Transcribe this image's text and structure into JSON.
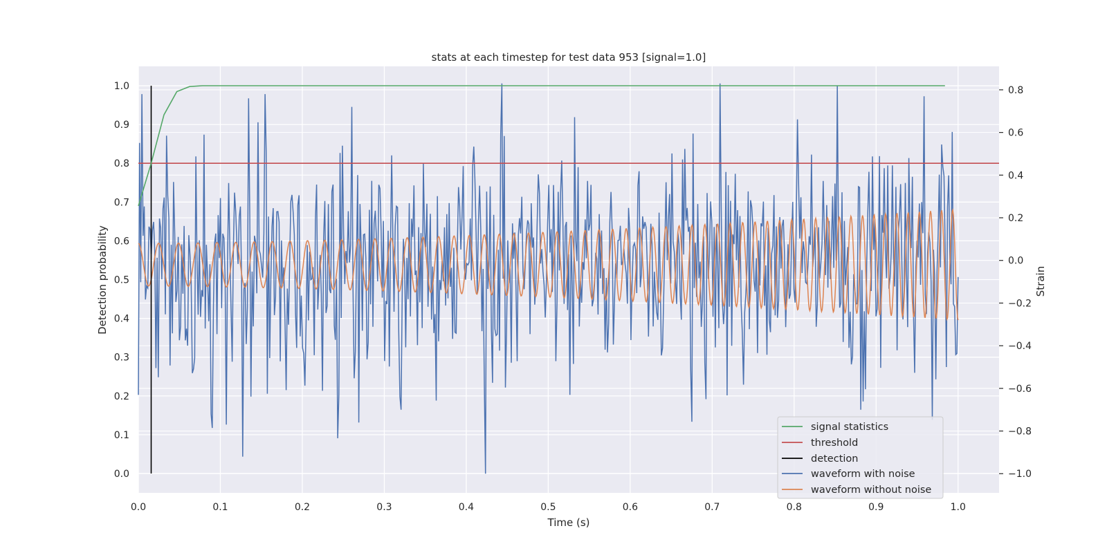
{
  "chart_data": {
    "type": "line",
    "title": "stats at each timestep for test data 953 [signal=1.0]",
    "xlabel": "Time (s)",
    "ylabel_left": "Detection probability",
    "ylabel_right": "Strain",
    "xlim": [
      0.0,
      1.05
    ],
    "ylim_left": [
      -0.05,
      1.05
    ],
    "ylim_right": [
      -1.09,
      0.91
    ],
    "x_ticks": [
      "0.0",
      "0.1",
      "0.2",
      "0.3",
      "0.4",
      "0.5",
      "0.6",
      "0.7",
      "0.8",
      "0.9",
      "1.0"
    ],
    "y_ticks_left": [
      "0.0",
      "0.1",
      "0.2",
      "0.3",
      "0.4",
      "0.5",
      "0.6",
      "0.7",
      "0.8",
      "0.9",
      "1.0"
    ],
    "y_ticks_right": [
      "−1.0",
      "−0.8",
      "−0.6",
      "−0.4",
      "−0.2",
      "0.0",
      "0.2",
      "0.4",
      "0.6",
      "0.8"
    ],
    "grid": true,
    "legend_position": "lower-right",
    "series": [
      {
        "name": "signal statistics",
        "axis": "left",
        "color": "#55a868",
        "x": [
          0.0,
          0.0156,
          0.0312,
          0.0469,
          0.0625,
          0.0781,
          0.0938,
          0.2,
          0.4,
          0.6,
          0.8,
          0.984
        ],
        "y": [
          0.69,
          0.8,
          0.925,
          0.985,
          0.998,
          1.0,
          1.0,
          1.0,
          1.0,
          1.0,
          1.0,
          1.0
        ]
      },
      {
        "name": "threshold",
        "axis": "left",
        "color": "#c44e52",
        "x": [
          0.0,
          1.05
        ],
        "y": [
          0.8,
          0.8
        ]
      },
      {
        "name": "detection",
        "axis": "left",
        "color": "#000000",
        "x": [
          0.0156,
          0.0156
        ],
        "y": [
          0.0,
          1.0
        ]
      },
      {
        "name": "waveform with noise",
        "axis": "right",
        "color": "#4c72b0",
        "x_range": [
          0.0,
          1.0
        ],
        "n_points": 700,
        "noise_amplitude": 0.28,
        "peaks": [
          {
            "x": 0.135,
            "y": 0.76
          },
          {
            "x": 0.155,
            "y": 0.78
          },
          {
            "x": 0.26,
            "y": 0.72
          },
          {
            "x": 0.443,
            "y": 0.83
          },
          {
            "x": 0.71,
            "y": 0.83
          },
          {
            "x": 0.852,
            "y": 0.82
          },
          {
            "x": 0.958,
            "y": 0.77
          },
          {
            "x": 0.424,
            "y": -1.0
          },
          {
            "x": 0.127,
            "y": -0.92
          },
          {
            "x": 0.088,
            "y": -0.72
          },
          {
            "x": 0.108,
            "y": -0.77
          },
          {
            "x": 0.881,
            "y": -0.7
          },
          {
            "x": 0.32,
            "y": -0.7
          },
          {
            "x": 0.269,
            "y": -0.76
          }
        ]
      },
      {
        "name": "waveform without noise",
        "axis": "right",
        "color": "#dd8452",
        "x_range": [
          0.0,
          1.0
        ],
        "description_amplitude_start": 0.1,
        "description_amplitude_end": 0.26,
        "frequency_start_hz": 40,
        "frequency_end_hz": 75
      }
    ]
  },
  "legend": {
    "items": [
      {
        "label": "signal statistics",
        "color": "#55a868"
      },
      {
        "label": "threshold",
        "color": "#c44e52"
      },
      {
        "label": "detection",
        "color": "#000000"
      },
      {
        "label": "waveform with noise",
        "color": "#4c72b0"
      },
      {
        "label": "waveform without noise",
        "color": "#dd8452"
      }
    ]
  }
}
